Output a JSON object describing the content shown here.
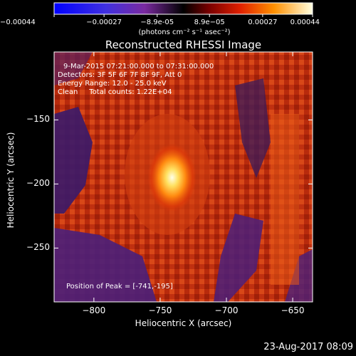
{
  "chart_data": {
    "type": "heatmap",
    "title": "Reconstructed RHESSI Image",
    "xlabel": "Heliocentric X (arcsec)",
    "ylabel": "Heliocentric Y (arcsec)",
    "xlim": [
      -830,
      -635
    ],
    "ylim": [
      -292,
      -97
    ],
    "x_ticks": [
      -800,
      -750,
      -700,
      -650
    ],
    "y_ticks": [
      -150,
      -200,
      -250
    ],
    "peak": [
      -741,
      -195
    ],
    "colorbar": {
      "range": [
        -0.00044,
        0.00044
      ],
      "tick_values": [
        -0.00044,
        -0.00027,
        -8.9e-05,
        8.9e-05,
        0.00027,
        0.00044
      ],
      "tick_labels": [
        "-0.00044",
        "-0.00027",
        "-8.9e-05",
        "8.9e-05",
        "0.00027",
        "0.00044"
      ],
      "units_label": "(photons cm⁻² s⁻¹ asec⁻²)"
    },
    "annotations": {
      "time": "9-Mar-2015 07:21:00.000 to 07:31:00.000",
      "detectors": "Detectors: 3F 5F 6F 7F 8F 9F, Att 0",
      "energy": "Energy Range: 12.0 - 25.0 keV",
      "clean": "Clean     Total counts: 1.22E+04",
      "peak_text": "Position of Peak = [-741,-195]"
    },
    "grid": false
  },
  "footer": {
    "date": "23-Aug-2017 08:09"
  }
}
